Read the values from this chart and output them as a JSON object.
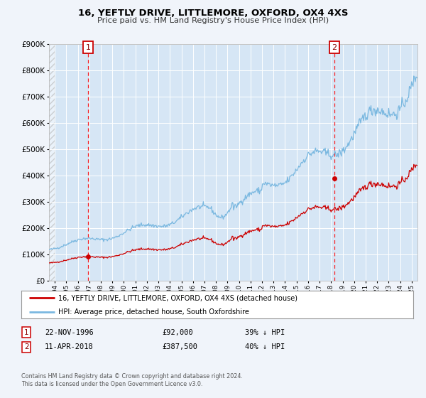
{
  "title": "16, YEFTLY DRIVE, LITTLEMORE, OXFORD, OX4 4XS",
  "subtitle": "Price paid vs. HM Land Registry's House Price Index (HPI)",
  "bg_color": "#f0f4fa",
  "plot_bg_color": "#d6e6f5",
  "grid_color": "#ffffff",
  "hpi_color": "#7ab8e0",
  "price_color": "#cc0000",
  "marker_color": "#cc0000",
  "sale1_year": 1996.9,
  "sale1_price": 92000,
  "sale1_label": "1",
  "sale2_year": 2018.28,
  "sale2_price": 387500,
  "sale2_label": "2",
  "legend_line1": "16, YEFTLY DRIVE, LITTLEMORE, OXFORD, OX4 4XS (detached house)",
  "legend_line2": "HPI: Average price, detached house, South Oxfordshire",
  "footnote1": "Contains HM Land Registry data © Crown copyright and database right 2024.",
  "footnote2": "This data is licensed under the Open Government Licence v3.0.",
  "ylim": [
    0,
    900000
  ],
  "xlim_start": 1993.5,
  "xlim_end": 2025.5,
  "hatch_end": 1994.0,
  "data_start_year": 1994.0
}
